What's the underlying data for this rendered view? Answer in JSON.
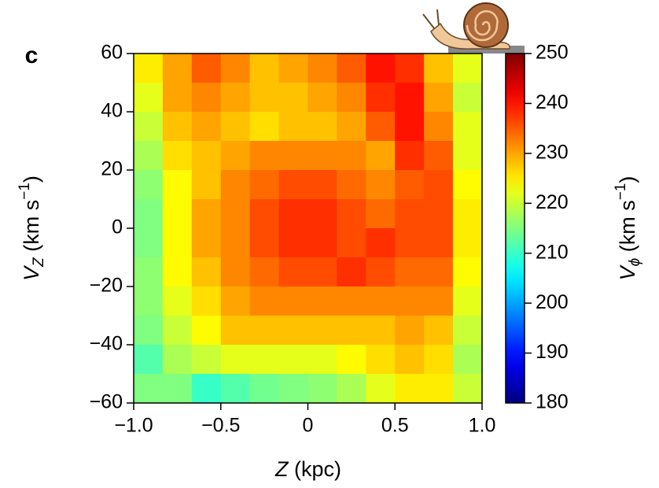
{
  "chart_data": {
    "type": "heatmap",
    "panel_label": "c",
    "xlabel": [
      "Z",
      " (kpc)"
    ],
    "ylabel": [
      "V",
      "Z",
      " (km s",
      "−1",
      ")"
    ],
    "xlim": [
      -1,
      1
    ],
    "xticks": [
      {
        "value": -1,
        "label": "−1.0"
      },
      {
        "value": -0.5,
        "label": "−0.5"
      },
      0,
      0.5,
      {
        "value": 1,
        "label": "1.0"
      }
    ],
    "ylim": [
      -60,
      60
    ],
    "yticks": [
      {
        "value": -60,
        "label": "−60"
      },
      {
        "value": -40,
        "label": "−40"
      },
      {
        "value": -20,
        "label": "−20"
      },
      0,
      20,
      40,
      60
    ],
    "colormap": "jet",
    "z": [
      [
        225,
        230,
        235,
        232,
        228,
        230,
        232,
        235,
        240,
        238,
        228,
        222
      ],
      [
        222,
        230,
        232,
        230,
        228,
        228,
        230,
        232,
        238,
        240,
        230,
        220
      ],
      [
        220,
        228,
        230,
        228,
        226,
        228,
        228,
        230,
        235,
        240,
        232,
        222
      ],
      [
        218,
        226,
        228,
        230,
        232,
        232,
        232,
        232,
        230,
        238,
        235,
        222
      ],
      [
        216,
        224,
        228,
        232,
        234,
        236,
        236,
        234,
        232,
        235,
        236,
        224
      ],
      [
        215,
        224,
        230,
        232,
        236,
        238,
        238,
        236,
        234,
        236,
        236,
        225
      ],
      [
        215,
        224,
        230,
        232,
        236,
        238,
        238,
        236,
        238,
        236,
        236,
        225
      ],
      [
        216,
        224,
        228,
        232,
        234,
        236,
        236,
        238,
        236,
        234,
        234,
        224
      ],
      [
        216,
        222,
        226,
        230,
        232,
        232,
        232,
        232,
        232,
        232,
        232,
        222
      ],
      [
        215,
        220,
        224,
        228,
        228,
        228,
        228,
        228,
        228,
        230,
        228,
        220
      ],
      [
        212,
        218,
        220,
        222,
        222,
        222,
        222,
        224,
        226,
        228,
        226,
        218
      ],
      [
        215,
        215,
        210,
        212,
        214,
        215,
        216,
        218,
        222,
        225,
        225,
        220
      ]
    ],
    "colorbar": {
      "lim": [
        180,
        250
      ],
      "ticks": [
        180,
        190,
        200,
        210,
        220,
        230,
        240,
        250
      ],
      "label": [
        "V",
        "ϕ",
        " (km s",
        "−1",
        ")"
      ]
    }
  }
}
